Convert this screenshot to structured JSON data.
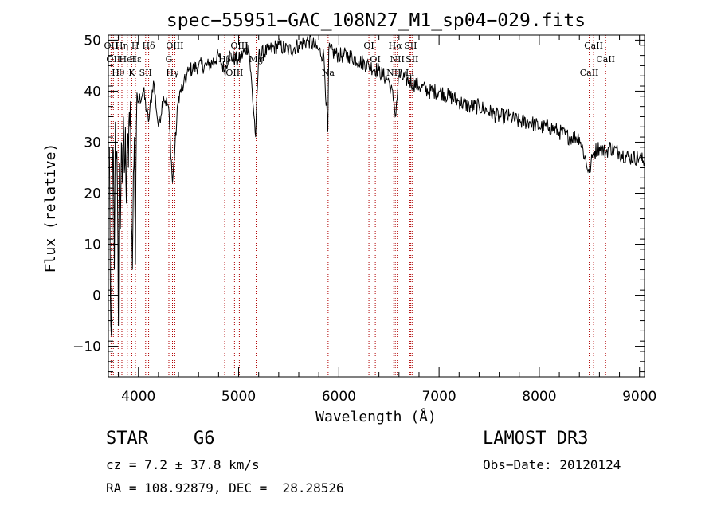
{
  "chart_data": {
    "type": "line",
    "title": "spec−55951−GAC_108N27_M1_sp04−029.fits",
    "xlabel": "Wavelength (Å)",
    "ylabel": "Flux (relative)",
    "xlim": [
      3700,
      9050
    ],
    "ylim": [
      -16,
      51
    ],
    "xticks": [
      {
        "value": 4000,
        "label": "4000"
      },
      {
        "value": 5000,
        "label": "5000"
      },
      {
        "value": 6000,
        "label": "6000"
      },
      {
        "value": 7000,
        "label": "7000"
      },
      {
        "value": 8000,
        "label": "8000"
      },
      {
        "value": 9000,
        "label": "9000"
      }
    ],
    "yticks": [
      {
        "value": -10,
        "label": "−10"
      },
      {
        "value": 0,
        "label": "0"
      },
      {
        "value": 10,
        "label": "10"
      },
      {
        "value": 20,
        "label": "20"
      },
      {
        "value": 30,
        "label": "30"
      },
      {
        "value": 40,
        "label": "40"
      },
      {
        "value": 50,
        "label": "50"
      }
    ],
    "series": [
      {
        "name": "flux",
        "x": [
          3710,
          3720,
          3730,
          3740,
          3750,
          3760,
          3770,
          3780,
          3790,
          3800,
          3810,
          3820,
          3830,
          3840,
          3850,
          3860,
          3870,
          3880,
          3890,
          3900,
          3910,
          3920,
          3930,
          3940,
          3950,
          3960,
          3970,
          3980,
          3990,
          4000,
          4050,
          4100,
          4150,
          4200,
          4250,
          4300,
          4340,
          4400,
          4450,
          4500,
          4600,
          4700,
          4800,
          4860,
          4900,
          5000,
          5100,
          5170,
          5200,
          5300,
          5400,
          5500,
          5600,
          5700,
          5800,
          5850,
          5890,
          5900,
          6000,
          6100,
          6200,
          6300,
          6400,
          6500,
          6550,
          6563,
          6600,
          6700,
          6800,
          6900,
          7000,
          7100,
          7200,
          7300,
          7400,
          7500,
          7600,
          7700,
          7800,
          7900,
          8000,
          8100,
          8200,
          8300,
          8400,
          8498,
          8542,
          8600,
          8662,
          8700,
          8800,
          8900,
          9000,
          9050
        ],
        "y": [
          29,
          0,
          -8,
          20,
          28,
          5,
          34,
          27,
          22,
          -6,
          26,
          13,
          30,
          22,
          35,
          24,
          33,
          18,
          31,
          25,
          36,
          38,
          14,
          5,
          24,
          31,
          6,
          33,
          39,
          38,
          40,
          34,
          42,
          33,
          39,
          37,
          22,
          39,
          41,
          44,
          45,
          45,
          47,
          44,
          47,
          46,
          49,
          31,
          47,
          48,
          49,
          48,
          49,
          50,
          48,
          47,
          32,
          48,
          47,
          47,
          46,
          45,
          44,
          42,
          38,
          35,
          43,
          42,
          41,
          40,
          40,
          39,
          38,
          37,
          37,
          36,
          35,
          35,
          34,
          34,
          33,
          33,
          32,
          31,
          31,
          24,
          28,
          29,
          28,
          29,
          28,
          27,
          27,
          26
        ]
      }
    ],
    "lines": [
      {
        "x": 3727,
        "label": "OII"
      },
      {
        "x": 3750,
        "label": "OII"
      },
      {
        "x": 3798,
        "label": "Hθ"
      },
      {
        "x": 3835,
        "label": "Hη"
      },
      {
        "x": 3889,
        "label": "HeI"
      },
      {
        "x": 3934,
        "label": "K"
      },
      {
        "x": 3968,
        "label": "H"
      },
      {
        "x": 3970,
        "label": "Hε"
      },
      {
        "x": 4072,
        "label": "SII"
      },
      {
        "x": 4102,
        "label": "Hδ"
      },
      {
        "x": 4304,
        "label": "G"
      },
      {
        "x": 4340,
        "label": "Hγ"
      },
      {
        "x": 4363,
        "label": "OIII"
      },
      {
        "x": 4861,
        "label": "Hβ"
      },
      {
        "x": 4959,
        "label": "OIII"
      },
      {
        "x": 5007,
        "label": "OIII"
      },
      {
        "x": 5175,
        "label": "Mg"
      },
      {
        "x": 5893,
        "label": "Na"
      },
      {
        "x": 6300,
        "label": "OI"
      },
      {
        "x": 6364,
        "label": "OI"
      },
      {
        "x": 6548,
        "label": "NII"
      },
      {
        "x": 6563,
        "label": "Hα"
      },
      {
        "x": 6583,
        "label": "NII"
      },
      {
        "x": 6708,
        "label": "Li"
      },
      {
        "x": 6716,
        "label": "SII"
      },
      {
        "x": 6731,
        "label": "SII"
      },
      {
        "x": 8498,
        "label": "CaII"
      },
      {
        "x": 8542,
        "label": "CaII"
      },
      {
        "x": 8662,
        "label": "CaII"
      }
    ]
  },
  "info": {
    "object_class": "STAR",
    "subclass": "G6",
    "survey": "LAMOST DR3",
    "redshift": "cz = 7.2 ± 37.8 km/s",
    "obs_date": "Obs−Date: 20120124",
    "coords": "RA = 108.92879, DEC =  28.28526"
  }
}
